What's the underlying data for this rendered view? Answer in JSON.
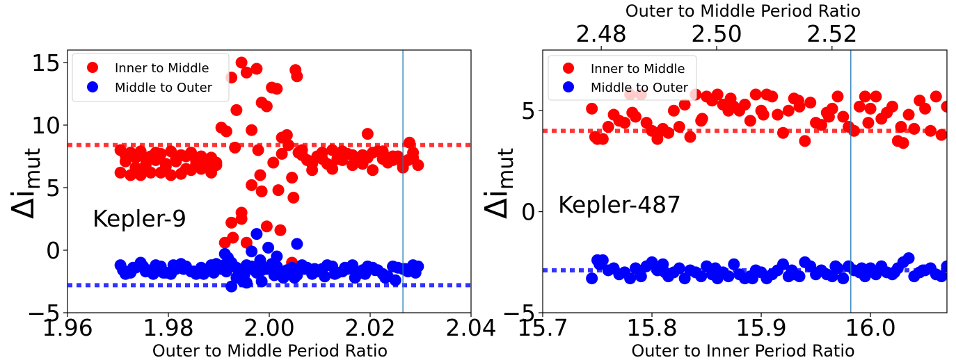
{
  "chart_data": [
    {
      "type": "scatter",
      "panel_label": "Kepler-9",
      "xlabel": "Outer to Middle Period Ratio",
      "ylabel_base": "Δi",
      "ylabel_sub": "mut",
      "xlim": [
        1.96,
        2.04
      ],
      "ylim": [
        -5,
        16
      ],
      "xticks": [
        1.96,
        1.98,
        2.0,
        2.02,
        2.04
      ],
      "xtick_labels": [
        "1.96",
        "1.98",
        "2.00",
        "2.02",
        "2.04"
      ],
      "yticks": [
        -5,
        0,
        5,
        10,
        15
      ],
      "ytick_labels": [
        "−5",
        "0",
        "5",
        "10",
        "15"
      ],
      "legend": {
        "position": "top-left",
        "entries": [
          "Inner to Middle",
          "Middle to Outer"
        ]
      },
      "reference_lines": [
        {
          "series": "Inner to Middle",
          "y": 8.4,
          "style": "dotted"
        },
        {
          "series": "Middle to Outer",
          "y": -2.8,
          "style": "dotted"
        }
      ],
      "vertical_line": {
        "x": 2.0265
      },
      "series": [
        {
          "name": "Inner to Middle",
          "color": "#ff0000",
          "x": [
            1.9705,
            1.9725,
            1.9745,
            1.9765,
            1.9785,
            1.9805,
            1.9825,
            1.9845,
            1.9865,
            1.9885,
            1.9705,
            1.9725,
            1.9745,
            1.9765,
            1.9785,
            1.9805,
            1.9825,
            1.9845,
            1.9865,
            1.9885,
            1.9715,
            1.9735,
            1.9755,
            1.9775,
            1.9795,
            1.9815,
            1.9835,
            1.9855,
            1.9875,
            1.9895,
            1.9715,
            1.9735,
            1.9755,
            1.9775,
            1.9795,
            1.9815,
            1.9835,
            1.9855,
            1.9875,
            1.9895,
            1.9905,
            1.9915,
            1.9925,
            1.9935,
            1.9945,
            1.9955,
            1.9965,
            1.9975,
            1.9985,
            1.9995,
            2.0005,
            2.0015,
            2.0025,
            2.0035,
            2.0045,
            2.0055,
            1.9912,
            1.9928,
            1.9932,
            1.9945,
            1.9955,
            1.9965,
            1.9978,
            1.9982,
            1.9995,
            2.0008,
            2.0022,
            2.0038,
            2.0048,
            2.0058,
            2.0065,
            2.0085,
            2.0105,
            2.0125,
            2.0145,
            2.0165,
            2.0185,
            2.0205,
            2.0225,
            2.0245,
            2.0265,
            2.0285,
            2.0075,
            2.0095,
            2.0115,
            2.0135,
            2.0155,
            2.0175,
            2.0195,
            2.0215,
            2.0235,
            2.0255,
            2.0275,
            2.0295,
            2.0065,
            2.0085,
            2.0105,
            2.0125,
            2.0145,
            2.0165,
            2.0185,
            2.0205,
            2.0225,
            2.0245,
            2.0265,
            2.0285,
            2.0195,
            2.0278,
            1.9925,
            1.9945,
            1.9985,
            2.0018,
            2.0025,
            2.0052,
            2.0045
          ],
          "y": [
            8.0,
            6.0,
            7.9,
            6.2,
            7.7,
            6.0,
            7.6,
            6.4,
            7.5,
            6.2,
            6.2,
            7.8,
            6.0,
            7.5,
            6.2,
            7.9,
            6.1,
            7.8,
            6.5,
            7.4,
            7.1,
            7.4,
            6.8,
            7.2,
            6.9,
            7.1,
            7.5,
            6.9,
            7.0,
            6.8,
            7.6,
            6.6,
            7.3,
            7.8,
            6.7,
            7.3,
            6.5,
            7.1,
            6.8,
            7.0,
            9.8,
            9.5,
            13.8,
            11.2,
            15.0,
            14.2,
            9.6,
            14.5,
            11.8,
            11.5,
            13.0,
            12.9,
            7.7,
            9.2,
            5.8,
            13.9,
            0.6,
            1.0,
            8.2,
            3.0,
            0.6,
            5.2,
            8.0,
            6.0,
            1.9,
            7.0,
            1.6,
            8.4,
            4.2,
            7.8,
            8.0,
            6.4,
            7.8,
            6.5,
            7.9,
            6.8,
            7.6,
            6.4,
            7.9,
            7.2,
            6.6,
            7.8,
            7.2,
            7.5,
            6.9,
            7.3,
            7.7,
            7.1,
            7.4,
            7.9,
            7.0,
            7.5,
            7.2,
            6.8,
            7.6,
            6.9,
            7.3,
            8.0,
            7.2,
            7.6,
            6.9,
            7.8,
            7.3,
            7.5,
            6.8,
            7.4,
            9.3,
            8.6,
            2.2,
            2.5,
            4.7,
            4.8,
            9.0,
            14.4,
            -1.0
          ]
        },
        {
          "name": "Middle to Outer",
          "color": "#0000ff",
          "x": [
            1.9705,
            1.9725,
            1.9745,
            1.9765,
            1.9785,
            1.9805,
            1.9825,
            1.9845,
            1.9865,
            1.9885,
            1.9905,
            1.9925,
            1.9945,
            1.9965,
            1.9985,
            2.0005,
            2.0025,
            2.0045,
            2.0065,
            2.0085,
            2.0105,
            2.0125,
            2.0145,
            2.0165,
            2.0185,
            2.0205,
            2.0225,
            2.0245,
            2.0265,
            2.0285,
            1.9715,
            1.9735,
            1.9755,
            1.9775,
            1.9795,
            1.9815,
            1.9835,
            1.9855,
            1.9875,
            1.9895,
            1.9915,
            1.9935,
            1.9955,
            1.9975,
            1.9995,
            2.0015,
            2.0035,
            2.0055,
            2.0075,
            2.0095,
            2.0115,
            2.0135,
            2.0155,
            2.0175,
            2.0195,
            2.0215,
            2.0235,
            2.0255,
            2.0275,
            2.0295,
            1.971,
            1.975,
            1.979,
            1.983,
            1.987,
            1.991,
            1.995,
            1.999,
            2.003,
            2.007,
            2.011,
            2.015,
            2.019,
            2.023,
            2.027,
            1.973,
            1.977,
            1.981,
            1.985,
            1.989,
            1.993,
            1.997,
            2.001,
            2.005,
            2.009,
            2.013,
            2.017,
            2.021,
            2.025,
            2.029,
            1.9912,
            1.9918,
            1.9935,
            1.9948,
            1.9965,
            1.9975,
            1.9982,
            1.9998,
            2.0015,
            2.0028,
            2.0055,
            1.9925,
            1.9955,
            1.9985
          ],
          "y": [
            -1.2,
            -1.8,
            -1.0,
            -1.6,
            -1.3,
            -1.9,
            -1.1,
            -1.7,
            -1.4,
            -1.2,
            -1.5,
            -1.0,
            -1.8,
            -1.3,
            -1.6,
            -1.1,
            -1.7,
            -1.4,
            -1.2,
            -1.9,
            -1.5,
            -1.3,
            -1.7,
            -1.2,
            -1.6,
            -1.4,
            -1.9,
            -1.3,
            -1.5,
            -1.2,
            -1.9,
            -1.4,
            -1.7,
            -1.2,
            -1.8,
            -1.5,
            -1.3,
            -1.9,
            -1.6,
            -1.1,
            -1.7,
            -1.4,
            -1.2,
            -1.8,
            -1.5,
            -1.3,
            -1.6,
            -2.0,
            -1.4,
            -1.7,
            -1.2,
            -1.8,
            -1.5,
            -1.9,
            -1.3,
            -1.6,
            -2.1,
            -1.4,
            -1.7,
            -1.3,
            -1.6,
            -1.3,
            -1.8,
            -1.5,
            -1.9,
            -1.2,
            -2.0,
            -1.4,
            -1.8,
            -1.5,
            -2.1,
            -1.4,
            -1.9,
            -2.2,
            -1.5,
            -1.4,
            -1.9,
            -1.2,
            -1.7,
            -1.8,
            -1.3,
            -1.6,
            -2.0,
            -2.2,
            -1.5,
            -1.9,
            -2.2,
            -1.6,
            -2.4,
            -1.8,
            -0.3,
            -0.6,
            -2.2,
            -2.5,
            -0.1,
            1.3,
            -0.8,
            0.2,
            -0.5,
            -2.2,
            0.5,
            -2.9,
            -2.6,
            -2.5
          ]
        }
      ]
    },
    {
      "type": "scatter",
      "panel_label": "Kepler-487",
      "xlabel": "Outer to Inner Period Ratio",
      "x2label": "Outer to Middle Period Ratio",
      "ylabel_base": "Δi",
      "ylabel_sub": "mut",
      "xlim": [
        15.7,
        16.07
      ],
      "ylim": [
        -5,
        8
      ],
      "xticks": [
        15.7,
        15.8,
        15.9,
        16.0
      ],
      "xtick_labels": [
        "15.7",
        "15.8",
        "15.9",
        "16.0"
      ],
      "x2ticks": [
        2.48,
        2.5,
        2.52
      ],
      "x2tick_labels": [
        "2.48",
        "2.50",
        "2.52"
      ],
      "x2_tick_positions_in_x": [
        15.7536,
        15.8592,
        15.9648
      ],
      "yticks": [
        -5,
        0,
        5
      ],
      "ytick_labels": [
        "−5",
        "0",
        "5"
      ],
      "legend": {
        "position": "top-left",
        "entries": [
          "Inner to Middle",
          "Middle to Outer"
        ]
      },
      "reference_lines": [
        {
          "series": "Inner to Middle",
          "y": 4.0,
          "style": "dotted"
        },
        {
          "series": "Middle to Outer",
          "y": -2.9,
          "style": "dotted"
        }
      ],
      "vertical_line": {
        "x": 15.982
      },
      "series": [
        {
          "name": "Inner to Middle",
          "color": "#ff0000",
          "x": [
            15.745,
            15.75,
            15.755,
            15.76,
            15.765,
            15.77,
            15.775,
            15.78,
            15.785,
            15.79,
            15.795,
            15.8,
            15.805,
            15.81,
            15.815,
            15.82,
            15.825,
            15.83,
            15.835,
            15.84,
            15.845,
            15.85,
            15.855,
            15.86,
            15.865,
            15.87,
            15.875,
            15.88,
            15.885,
            15.89,
            15.895,
            15.9,
            15.905,
            15.91,
            15.915,
            15.92,
            15.925,
            15.93,
            15.935,
            15.94,
            15.945,
            15.95,
            15.955,
            15.96,
            15.965,
            15.97,
            15.975,
            15.98,
            15.985,
            15.99,
            15.995,
            16.0,
            16.005,
            16.01,
            16.015,
            16.02,
            16.025,
            16.03,
            16.035,
            16.04,
            16.045,
            16.05,
            16.055,
            16.06,
            16.065,
            16.07,
            15.748,
            15.782,
            15.806,
            15.846,
            15.872,
            15.902,
            15.934,
            15.962,
            15.998,
            16.028
          ],
          "y": [
            5.1,
            3.6,
            3.6,
            4.2,
            4.8,
            4.5,
            4.4,
            5.8,
            4.7,
            5.8,
            4.4,
            4.0,
            3.6,
            4.1,
            3.9,
            5.0,
            4.2,
            5.3,
            3.7,
            5.8,
            4.5,
            5.7,
            5.5,
            5.8,
            5.3,
            5.0,
            5.2,
            5.0,
            5.3,
            4.5,
            5.8,
            5.0,
            5.8,
            5.7,
            4.8,
            3.9,
            5.0,
            5.6,
            5.2,
            3.5,
            5.4,
            4.4,
            4.3,
            4.9,
            5.1,
            5.7,
            4.7,
            4.2,
            4.0,
            5.2,
            5.7,
            5.1,
            5.7,
            4.6,
            4.9,
            5.2,
            3.5,
            3.4,
            4.8,
            4.1,
            5.5,
            5.1,
            4.0,
            5.7,
            3.8,
            5.2,
            3.7,
            4.9,
            3.9,
            4.6,
            5.6,
            4.8,
            5.5,
            4.7,
            4.4,
            4.2
          ]
        },
        {
          "name": "Middle to Outer",
          "color": "#0000ff",
          "x": [
            15.745,
            15.75,
            15.755,
            15.76,
            15.765,
            15.77,
            15.775,
            15.78,
            15.785,
            15.79,
            15.795,
            15.8,
            15.805,
            15.81,
            15.815,
            15.82,
            15.825,
            15.83,
            15.835,
            15.84,
            15.845,
            15.85,
            15.855,
            15.86,
            15.865,
            15.87,
            15.875,
            15.88,
            15.885,
            15.89,
            15.895,
            15.9,
            15.905,
            15.91,
            15.915,
            15.92,
            15.925,
            15.93,
            15.935,
            15.94,
            15.945,
            15.95,
            15.955,
            15.96,
            15.965,
            15.97,
            15.975,
            15.98,
            15.985,
            15.99,
            15.995,
            16.0,
            16.005,
            16.01,
            16.015,
            16.02,
            16.025,
            16.03,
            16.035,
            16.04,
            16.045,
            16.05,
            16.055,
            16.06,
            16.065,
            16.07,
            15.752,
            15.788,
            15.812,
            15.858,
            15.892,
            15.928,
            15.968,
            15.992,
            16.022,
            16.048
          ],
          "y": [
            -3.3,
            -2.4,
            -2.4,
            -2.9,
            -2.8,
            -3.1,
            -3.0,
            -3.3,
            -2.8,
            -3.2,
            -2.7,
            -2.5,
            -2.9,
            -2.6,
            -3.2,
            -3.0,
            -2.8,
            -3.3,
            -2.9,
            -3.0,
            -3.2,
            -2.7,
            -3.1,
            -3.3,
            -3.0,
            -3.2,
            -2.6,
            -3.1,
            -3.3,
            -3.2,
            -2.9,
            -3.0,
            -3.3,
            -3.1,
            -2.9,
            -2.6,
            -3.2,
            -3.1,
            -3.2,
            -2.5,
            -2.7,
            -3.1,
            -2.9,
            -3.1,
            -3.2,
            -2.8,
            -3.3,
            -2.7,
            -2.9,
            -3.0,
            -3.2,
            -2.8,
            -3.1,
            -2.7,
            -3.0,
            -3.1,
            -2.8,
            -2.5,
            -2.3,
            -3.2,
            -3.0,
            -2.9,
            -2.8,
            -3.1,
            -3.2,
            -2.7,
            -2.6,
            -2.9,
            -3.0,
            -2.8,
            -3.3,
            -2.9,
            -2.7,
            -2.8,
            -3.0,
            -2.9
          ]
        }
      ]
    }
  ]
}
